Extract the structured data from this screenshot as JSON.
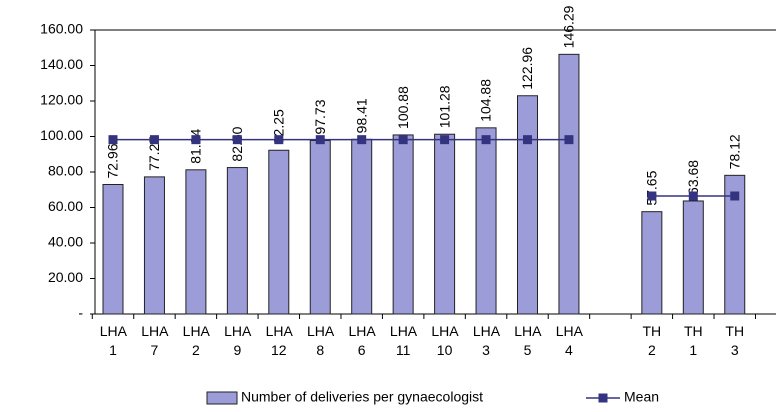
{
  "chart_data": {
    "type": "bar",
    "categories": [
      "LHA 1",
      "LHA 7",
      "LHA 2",
      "LHA 9",
      "LHA 12",
      "LHA 8",
      "LHA 6",
      "LHA 11",
      "LHA 10",
      "LHA 3",
      "LHA 5",
      "LHA 4",
      null,
      "TH 2",
      "TH 1",
      "TH 3"
    ],
    "series": [
      {
        "name": "Number of deliveries per gynaecologist",
        "color": "#9c9cd9",
        "values": [
          72.96,
          77.25,
          81.24,
          82.5,
          92.25,
          97.73,
          98.41,
          100.88,
          101.28,
          104.88,
          122.96,
          146.29,
          null,
          57.65,
          63.68,
          78.12
        ],
        "value_labels": [
          "72.96",
          "77.25",
          "81.24",
          "82.50",
          "92.25",
          "97.73",
          "98.41",
          "100.88",
          "101.28",
          "104.88",
          "122.96",
          "146.29",
          null,
          "57.65",
          "63.68",
          "78.12"
        ]
      },
      {
        "name": "Mean",
        "type": "line",
        "color": "#333380",
        "values": [
          98.22,
          98.22,
          98.22,
          98.22,
          98.22,
          98.22,
          98.22,
          98.22,
          98.22,
          98.22,
          98.22,
          98.22,
          null,
          66.48,
          66.48,
          66.48
        ]
      }
    ],
    "ylim": [
      0,
      160
    ],
    "yticks": [
      {
        "value": 0,
        "label": "-"
      },
      {
        "value": 20,
        "label": "20.00"
      },
      {
        "value": 40,
        "label": "40.00"
      },
      {
        "value": 60,
        "label": "60.00"
      },
      {
        "value": 80,
        "label": "80.00"
      },
      {
        "value": 100,
        "label": "100.00"
      },
      {
        "value": 120,
        "label": "120.00"
      },
      {
        "value": 140,
        "label": "140.00"
      },
      {
        "value": 160,
        "label": "160.00"
      }
    ]
  }
}
